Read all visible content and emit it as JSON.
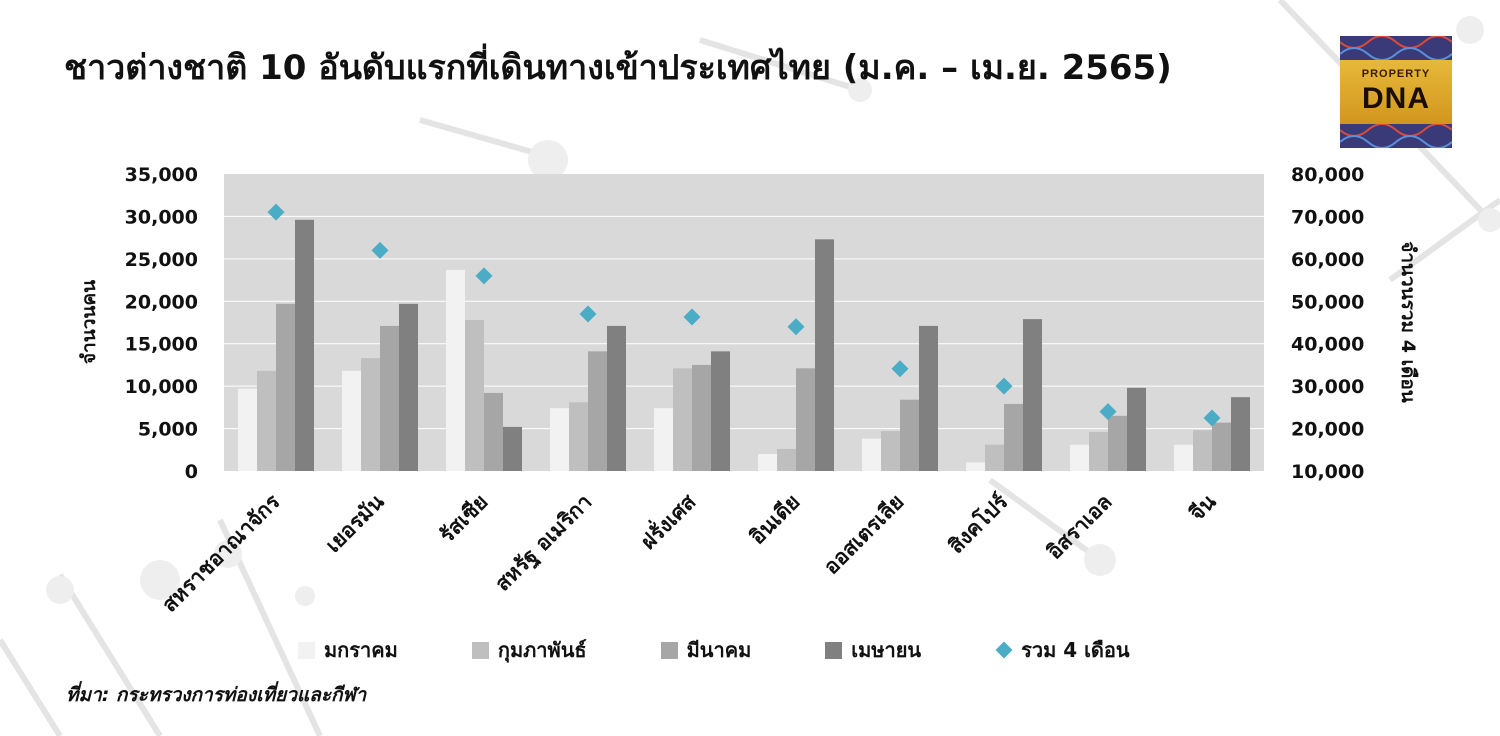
{
  "title": "ชาวต่างชาติ 10 อันดับแรกที่เดินทางเข้าประเทศไทย (ม.ค. – เม.ย. 2565)",
  "logo": {
    "line1": "PROPERTY",
    "line2": "DNA"
  },
  "source": "ที่มา: กระทรวงการท่องเที่ยวและกีฬา",
  "colors": {
    "plot_background": "#d9d9d9",
    "gridline": "#ffffff",
    "marker": "#4bacc6"
  },
  "chart_data": {
    "type": "bar",
    "categories": [
      "สหราชอาณาจักร",
      "เยอรมัน",
      "รัสเซีย",
      "สหรัฐ อเมริกา",
      "ฝรั่งเศส",
      "อินเดีย",
      "ออสเตรเลีย",
      "สิงคโปร์",
      "อิสราเอล",
      "จีน"
    ],
    "ylabel": "จำนวนคน",
    "ylim": [
      0,
      35000
    ],
    "yticks": [
      "0",
      "5,000",
      "10,000",
      "15,000",
      "20,000",
      "25,000",
      "30,000",
      "35,000"
    ],
    "y2label": "จำนวนรวม 4 เดือน",
    "y2lim": [
      10000,
      80000
    ],
    "y2ticks": [
      "10,000",
      "20,000",
      "30,000",
      "40,000",
      "50,000",
      "60,000",
      "70,000",
      "80,000"
    ],
    "grid": true,
    "legend_position": "bottom",
    "series": [
      {
        "name": "มกราคม",
        "color": "#f2f2f2",
        "type": "bar",
        "values": [
          9700,
          11800,
          23700,
          7400,
          7400,
          2000,
          3800,
          1000,
          3100,
          3100
        ]
      },
      {
        "name": "กุมภาพันธ์",
        "color": "#bfbfbf",
        "type": "bar",
        "values": [
          11800,
          13300,
          17800,
          8100,
          12100,
          2600,
          4700,
          3100,
          4600,
          4800
        ]
      },
      {
        "name": "มีนาคม",
        "color": "#a6a6a6",
        "type": "bar",
        "values": [
          19700,
          17100,
          9200,
          14100,
          12500,
          12100,
          8400,
          7900,
          6500,
          5700
        ]
      },
      {
        "name": "เมษายน",
        "color": "#808080",
        "type": "bar",
        "values": [
          29600,
          19700,
          5200,
          17100,
          14100,
          27300,
          17100,
          17900,
          9800,
          8700
        ]
      },
      {
        "name": "รวม 4 เดือน",
        "color": "#4bacc6",
        "type": "scatter",
        "axis": "right",
        "values": [
          71000,
          62000,
          56000,
          47000,
          46300,
          44000,
          34100,
          30000,
          24000,
          22500
        ]
      }
    ]
  }
}
